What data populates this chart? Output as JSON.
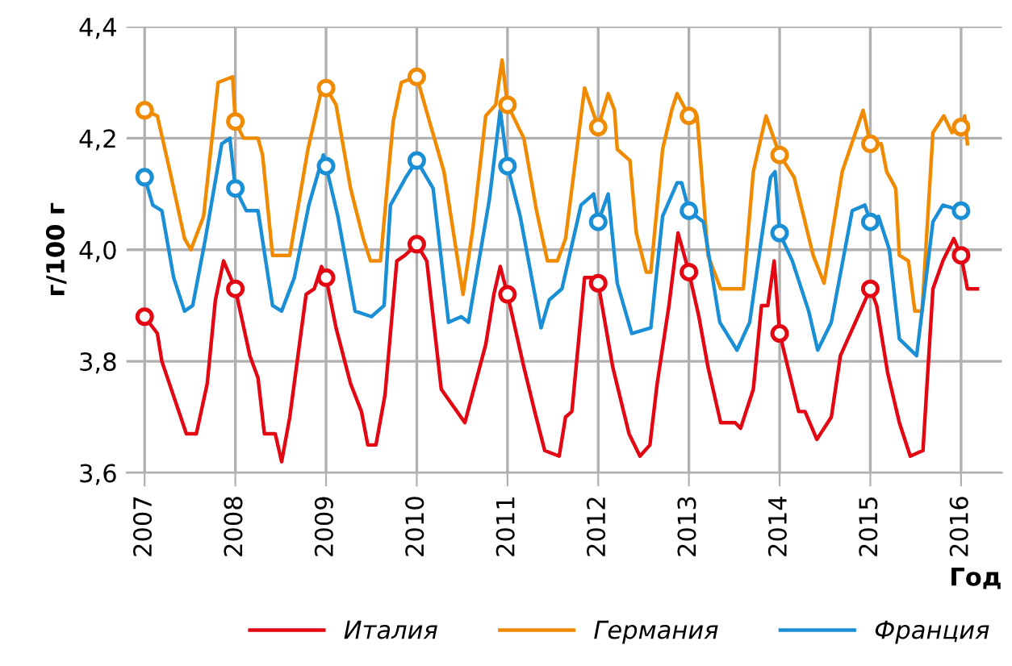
{
  "chart_data": {
    "type": "line",
    "xlabel": "Год",
    "ylabel": "г/100 г",
    "xlim": [
      2006.8,
      2016.45
    ],
    "ylim": [
      3.6,
      4.4
    ],
    "xticks": [
      2007,
      2008,
      2009,
      2010,
      2011,
      2012,
      2013,
      2014,
      2015,
      2016
    ],
    "yticks": [
      {
        "value": 3.6,
        "label": "3,6"
      },
      {
        "value": 3.8,
        "label": "3,8"
      },
      {
        "value": 4.0,
        "label": "4,0"
      },
      {
        "value": 4.2,
        "label": "4,2"
      },
      {
        "value": 4.4,
        "label": "4,4"
      }
    ],
    "grid": true,
    "legend": "bottom",
    "marker": "none",
    "line_style": "solid",
    "series": [
      {
        "name": "Италия",
        "color": "#e30613",
        "x": [
          2007.0,
          2007.14,
          2007.19,
          2007.46,
          2007.57,
          2007.69,
          2007.78,
          2007.87,
          2008.0,
          2008.16,
          2008.25,
          2008.32,
          2008.44,
          2008.51,
          2008.6,
          2008.78,
          2008.87,
          2008.95,
          2009.0,
          2009.11,
          2009.27,
          2009.39,
          2009.46,
          2009.55,
          2009.65,
          2009.78,
          2009.87,
          2010.0,
          2010.11,
          2010.27,
          2010.53,
          2010.76,
          2010.85,
          2010.92,
          2011.0,
          2011.18,
          2011.3,
          2011.41,
          2011.57,
          2011.64,
          2011.71,
          2011.85,
          2011.97,
          2012.0,
          2012.16,
          2012.34,
          2012.46,
          2012.57,
          2012.65,
          2012.78,
          2012.88,
          2013.0,
          2013.11,
          2013.21,
          2013.35,
          2013.51,
          2013.57,
          2013.71,
          2013.8,
          2013.87,
          2013.94,
          2014.0,
          2014.21,
          2014.28,
          2014.41,
          2014.57,
          2014.67,
          2015.0,
          2015.07,
          2015.19,
          2015.32,
          2015.44,
          2015.58,
          2015.69,
          2015.8,
          2015.92,
          2016.0,
          2016.07,
          2016.18
        ],
        "values": [
          3.88,
          3.85,
          3.8,
          3.67,
          3.67,
          3.76,
          3.91,
          3.98,
          3.93,
          3.81,
          3.77,
          3.67,
          3.67,
          3.62,
          3.7,
          3.92,
          3.93,
          3.97,
          3.95,
          3.86,
          3.76,
          3.71,
          3.65,
          3.65,
          3.74,
          3.98,
          3.99,
          4.01,
          3.98,
          3.75,
          3.69,
          3.83,
          3.92,
          3.97,
          3.92,
          3.79,
          3.71,
          3.64,
          3.63,
          3.7,
          3.71,
          3.95,
          3.95,
          3.94,
          3.79,
          3.67,
          3.63,
          3.65,
          3.76,
          3.9,
          4.03,
          3.96,
          3.88,
          3.79,
          3.69,
          3.69,
          3.68,
          3.75,
          3.9,
          3.9,
          3.98,
          3.85,
          3.71,
          3.71,
          3.66,
          3.7,
          3.81,
          3.93,
          3.9,
          3.78,
          3.69,
          3.63,
          3.64,
          3.93,
          3.98,
          4.02,
          3.99,
          3.93,
          3.93
        ]
      },
      {
        "name": "Германия",
        "color": "#f08a00",
        "x": [
          2007.0,
          2007.14,
          2007.28,
          2007.44,
          2007.51,
          2007.65,
          2007.81,
          2007.97,
          2008.0,
          2008.09,
          2008.25,
          2008.3,
          2008.41,
          2008.6,
          2008.8,
          2008.94,
          2009.0,
          2009.11,
          2009.27,
          2009.41,
          2009.49,
          2009.6,
          2009.74,
          2009.83,
          2010.0,
          2010.14,
          2010.3,
          2010.51,
          2010.62,
          2010.76,
          2010.87,
          2010.94,
          2011.0,
          2011.18,
          2011.32,
          2011.44,
          2011.55,
          2011.64,
          2011.85,
          2012.0,
          2012.11,
          2012.18,
          2012.21,
          2012.35,
          2012.42,
          2012.53,
          2012.58,
          2012.71,
          2012.81,
          2012.87,
          2013.0,
          2013.09,
          2013.21,
          2013.35,
          2013.6,
          2013.71,
          2013.85,
          2014.0,
          2014.16,
          2014.37,
          2014.49,
          2014.69,
          2014.92,
          2015.0,
          2015.12,
          2015.18,
          2015.28,
          2015.32,
          2015.42,
          2015.49,
          2015.57,
          2015.69,
          2015.81,
          2015.9,
          2016.0,
          2016.04,
          2016.07
        ],
        "values": [
          4.25,
          4.24,
          4.14,
          4.02,
          4.0,
          4.06,
          4.3,
          4.31,
          4.23,
          4.2,
          4.2,
          4.17,
          3.99,
          3.99,
          4.18,
          4.28,
          4.29,
          4.26,
          4.11,
          4.02,
          3.98,
          3.98,
          4.23,
          4.3,
          4.31,
          4.23,
          4.14,
          3.92,
          4.04,
          4.24,
          4.26,
          4.34,
          4.26,
          4.2,
          4.07,
          3.98,
          3.98,
          4.02,
          4.29,
          4.22,
          4.28,
          4.25,
          4.18,
          4.16,
          4.03,
          3.96,
          3.96,
          4.18,
          4.25,
          4.28,
          4.24,
          4.24,
          3.99,
          3.93,
          3.93,
          4.14,
          4.24,
          4.17,
          4.13,
          3.99,
          3.94,
          4.14,
          4.25,
          4.19,
          4.19,
          4.14,
          4.11,
          3.99,
          3.98,
          3.89,
          3.89,
          4.21,
          4.24,
          4.21,
          4.22,
          4.24,
          4.19
        ]
      },
      {
        "name": "Франция",
        "color": "#1a8fd6",
        "x": [
          2007.0,
          2007.09,
          2007.19,
          2007.32,
          2007.44,
          2007.53,
          2007.67,
          2007.85,
          2007.94,
          2008.0,
          2008.12,
          2008.25,
          2008.41,
          2008.51,
          2008.65,
          2008.81,
          2008.97,
          2009.0,
          2009.13,
          2009.32,
          2009.5,
          2009.64,
          2009.71,
          2009.88,
          2010.0,
          2010.18,
          2010.35,
          2010.49,
          2010.57,
          2010.8,
          2010.92,
          2011.0,
          2011.14,
          2011.37,
          2011.46,
          2011.6,
          2011.81,
          2011.95,
          2012.0,
          2012.11,
          2012.21,
          2012.37,
          2012.58,
          2012.71,
          2012.87,
          2012.92,
          2013.0,
          2013.16,
          2013.34,
          2013.53,
          2013.67,
          2013.8,
          2013.9,
          2013.95,
          2014.0,
          2014.14,
          2014.32,
          2014.42,
          2014.57,
          2014.8,
          2014.94,
          2015.0,
          2015.09,
          2015.21,
          2015.32,
          2015.51,
          2015.69,
          2015.8,
          2016.0
        ],
        "values": [
          4.13,
          4.08,
          4.07,
          3.95,
          3.89,
          3.9,
          4.02,
          4.19,
          4.2,
          4.11,
          4.07,
          4.07,
          3.9,
          3.89,
          3.95,
          4.08,
          4.17,
          4.15,
          4.06,
          3.89,
          3.88,
          3.9,
          4.08,
          4.13,
          4.16,
          4.11,
          3.87,
          3.88,
          3.87,
          4.09,
          4.25,
          4.15,
          4.06,
          3.86,
          3.91,
          3.93,
          4.08,
          4.1,
          4.05,
          4.1,
          3.94,
          3.85,
          3.86,
          4.06,
          4.12,
          4.12,
          4.07,
          4.05,
          3.87,
          3.82,
          3.87,
          4.02,
          4.13,
          4.14,
          4.03,
          3.98,
          3.89,
          3.82,
          3.87,
          4.07,
          4.08,
          4.05,
          4.06,
          4.0,
          3.84,
          3.81,
          4.05,
          4.08,
          4.07
        ]
      },
      {
        "type": "scatter",
        "marker": "circle",
        "color": "#e30613",
        "x": [
          2007,
          2008,
          2009,
          2010,
          2011,
          2012,
          2013,
          2014,
          2015,
          2016
        ],
        "values": [
          3.88,
          3.93,
          3.95,
          4.01,
          3.92,
          3.94,
          3.96,
          3.85,
          3.93,
          3.99
        ]
      },
      {
        "type": "scatter",
        "marker": "circle",
        "color": "#f08a00",
        "x": [
          2007,
          2008,
          2009,
          2010,
          2011,
          2012,
          2013,
          2014,
          2015,
          2016
        ],
        "values": [
          4.25,
          4.23,
          4.29,
          4.31,
          4.26,
          4.22,
          4.24,
          4.17,
          4.19,
          4.22
        ]
      },
      {
        "type": "scatter",
        "marker": "circle",
        "color": "#1a8fd6",
        "x": [
          2007,
          2008,
          2009,
          2010,
          2011,
          2012,
          2013,
          2014,
          2015,
          2016
        ],
        "values": [
          4.13,
          4.11,
          4.15,
          4.16,
          4.15,
          4.05,
          4.07,
          4.03,
          4.05,
          4.07
        ]
      }
    ]
  }
}
